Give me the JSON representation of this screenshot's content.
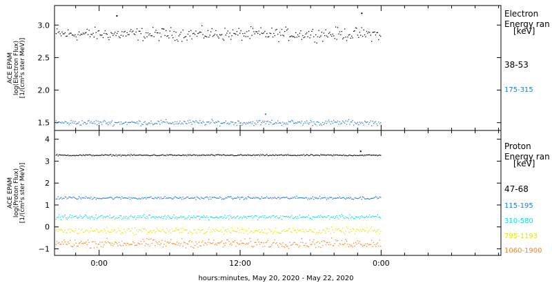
{
  "xlabel": "hours:minutes, May 20, 2020 - May 22, 2020",
  "xaxis": {
    "range_hours": [
      -3.8,
      34.2
    ],
    "data_end_hour": 24.0,
    "tick_labels": [
      {
        "hour": 0,
        "label": "0:00"
      },
      {
        "hour": 12,
        "label": "12:00"
      },
      {
        "hour": 24,
        "label": "0:00"
      }
    ],
    "minor_tick_every_hours": 2
  },
  "panels": [
    {
      "name": "electron",
      "ylabel": [
        "ACE EPAM",
        "log(Electron Flux)",
        "[1/(cm²s ster MeV)]"
      ],
      "ylim": [
        1.38,
        3.3
      ],
      "yticks": [
        1.5,
        2.0,
        2.5,
        3.0
      ],
      "ytick_labels": [
        "1.5",
        "2.0",
        "2.5",
        "3.0"
      ],
      "legend_title": [
        "Electron",
        "Energy ran",
        "[keV]"
      ],
      "series": [
        {
          "name": "38-53",
          "color": "#000000",
          "center": 2.86,
          "spread": 0.06,
          "outliers": [
            [
              1.45,
              3.14
            ],
            [
              22.3,
              3.18
            ]
          ]
        },
        {
          "name": "175-315",
          "color": "#1f78d1",
          "center": 1.5,
          "spread": 0.025,
          "outliers": [
            [
              14.1,
              1.63
            ]
          ]
        }
      ]
    },
    {
      "name": "proton",
      "ylabel": [
        "ACE EPAM",
        "log(Proton Flux)",
        "[1/(cm²s ster MeV)]"
      ],
      "ylim": [
        -1.3,
        4.4
      ],
      "yticks": [
        -1,
        0,
        1,
        2,
        3,
        4
      ],
      "ytick_labels": [
        "−1",
        "0",
        "1",
        "2",
        "3",
        "4"
      ],
      "legend_title": [
        "Proton",
        "Energy ran",
        "[keV]"
      ],
      "series": [
        {
          "name": "47-68",
          "color": "#000000",
          "center": 3.27,
          "spread": 0.02,
          "outliers": [
            [
              22.2,
              3.45
            ]
          ]
        },
        {
          "name": "115-195",
          "color": "#1f78d1",
          "center": 1.32,
          "spread": 0.04,
          "outliers": []
        },
        {
          "name": "310-580",
          "color": "#00dfe0",
          "center": 0.45,
          "spread": 0.06,
          "outliers": []
        },
        {
          "name": "795-1193",
          "color": "#e6e600",
          "center": -0.18,
          "spread": 0.09,
          "outliers": []
        },
        {
          "name": "1060-1900",
          "color": "#ff7f0e",
          "center": -0.75,
          "spread": 0.12,
          "outliers": []
        }
      ]
    }
  ]
}
